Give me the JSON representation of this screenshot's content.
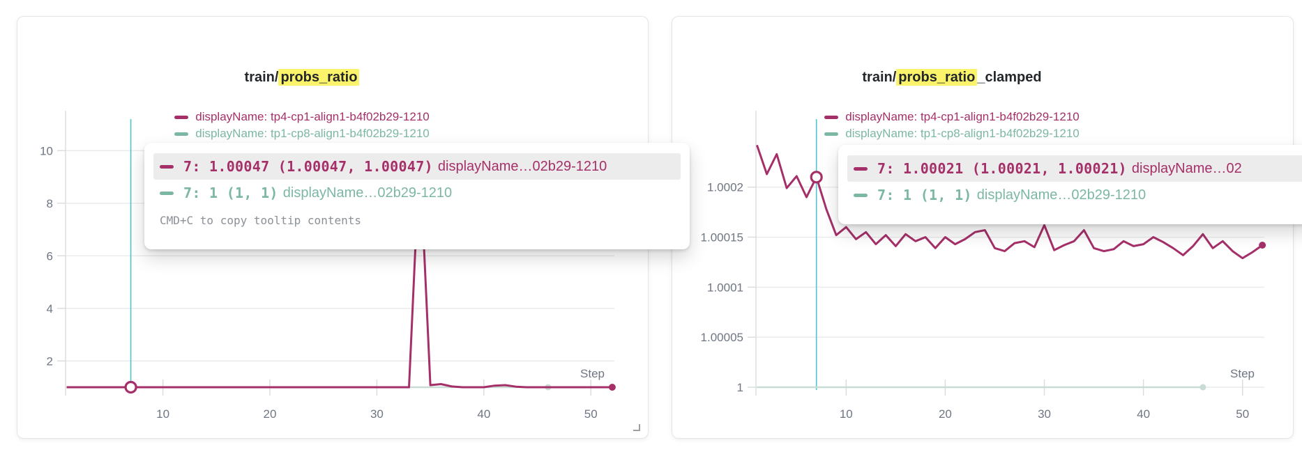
{
  "colors": {
    "series_magenta": "#a53069",
    "series_teal": "#7cb7a6",
    "series_teal_muted": "#c9dbd5",
    "crosshair": "#4fc4cf",
    "highlight_yellow": "#fbf36a",
    "axis_text": "#6f7683",
    "gridline": "#e9eaec",
    "tick_line": "#d9dbdf",
    "tooltip_row_bg": "#ececec"
  },
  "panels": [
    {
      "title_prefix": "train/",
      "title_highlight": "probs_ratio",
      "title_suffix": "",
      "legend": [
        {
          "label": "displayName: tp4-cp1-align1-b4f02b29-1210",
          "color": "#a53069"
        },
        {
          "label": "displayName: tp1-cp8-align1-b4f02b29-1210",
          "color": "#7cb7a6"
        }
      ],
      "tooltip": {
        "rows": [
          {
            "value_text": "7: 1.00047 (1.00047, 1.00047)",
            "name_text": "displayName…02b29-1210",
            "color": "#a53069",
            "highlighted": true
          },
          {
            "value_text": "7: 1 (1, 1)",
            "name_text": "displayName…02b29-1210",
            "color": "#7cb7a6",
            "highlighted": false
          }
        ],
        "footer": "CMD+C to copy tooltip contents"
      }
    },
    {
      "title_prefix": "train/",
      "title_highlight": "probs_ratio",
      "title_suffix": "_clamped",
      "legend": [
        {
          "label": "displayName: tp4-cp1-align1-b4f02b29-1210",
          "color": "#a53069"
        },
        {
          "label": "displayName: tp1-cp8-align1-b4f02b29-1210",
          "color": "#7cb7a6"
        }
      ],
      "tooltip": {
        "rows": [
          {
            "value_text": "7: 1.00021 (1.00021, 1.00021)",
            "name_text": "displayName…02",
            "color": "#a53069",
            "highlighted": true
          },
          {
            "value_text": "7: 1 (1, 1)",
            "name_text": "displayName…02b29-1210",
            "color": "#7cb7a6",
            "highlighted": false
          }
        ],
        "footer": ""
      }
    }
  ],
  "chart_data": [
    {
      "type": "line",
      "title": "train/probs_ratio",
      "xlabel": "Step",
      "xlim": [
        0.9,
        52.2
      ],
      "ylim": [
        1,
        11.2
      ],
      "x_ticks": [
        {
          "v": 10,
          "label": "10"
        },
        {
          "v": 20,
          "label": "20"
        },
        {
          "v": 30,
          "label": "30"
        },
        {
          "v": 40,
          "label": "40"
        },
        {
          "v": 50,
          "label": "50"
        }
      ],
      "y_ticks": [
        {
          "v": 2,
          "label": "2"
        },
        {
          "v": 4,
          "label": "4"
        },
        {
          "v": 6,
          "label": "6"
        },
        {
          "v": 8,
          "label": "8"
        },
        {
          "v": 10,
          "label": "10"
        }
      ],
      "hover": {
        "step": 7,
        "value": 1.00047
      },
      "series": [
        {
          "name": "tp1-cp8-align1-b4f02b29-1210",
          "color": "#7cb7a6",
          "render_color": "#c9dbd5",
          "x": [
            1,
            2,
            3,
            4,
            5,
            6,
            7,
            8,
            9,
            10,
            11,
            12,
            13,
            14,
            15,
            16,
            17,
            18,
            19,
            20,
            21,
            22,
            23,
            24,
            25,
            26,
            27,
            28,
            29,
            30,
            31,
            32,
            33,
            34,
            35,
            36,
            37,
            38,
            39,
            40,
            41,
            42,
            43,
            44,
            45,
            46
          ],
          "values": [
            1,
            1,
            1,
            1,
            1,
            1,
            1,
            1,
            1,
            1,
            1,
            1,
            1,
            1,
            1,
            1,
            1,
            1,
            1,
            1,
            1,
            1,
            1,
            1,
            1,
            1,
            1,
            1,
            1,
            1,
            1,
            1,
            1,
            1,
            1,
            1,
            1,
            1,
            1,
            1,
            1,
            1,
            1,
            1,
            1,
            1
          ]
        },
        {
          "name": "tp4-cp1-align1-b4f02b29-1210",
          "color": "#a53069",
          "x": [
            1,
            2,
            3,
            4,
            5,
            6,
            7,
            8,
            9,
            10,
            11,
            12,
            13,
            14,
            15,
            16,
            17,
            18,
            19,
            20,
            21,
            22,
            23,
            24,
            25,
            26,
            27,
            28,
            29,
            30,
            31,
            32,
            33,
            34,
            35,
            36,
            37,
            38,
            39,
            40,
            41,
            42,
            43,
            44,
            45,
            46,
            47,
            48,
            49,
            50,
            51,
            52
          ],
          "values": [
            1,
            1,
            1,
            1,
            1,
            1,
            1.00047,
            1,
            1,
            1,
            1,
            1,
            1,
            1,
            1,
            1,
            1,
            1,
            1,
            1,
            1,
            1,
            1,
            1,
            1,
            1,
            1,
            1,
            1,
            1,
            1,
            1,
            1,
            9.9,
            1.08,
            1.12,
            1.03,
            1,
            1,
            1,
            1.06,
            1.08,
            1.02,
            1,
            1,
            1,
            1,
            1,
            1,
            1,
            1,
            1
          ]
        }
      ]
    },
    {
      "type": "line",
      "title": "train/probs_ratio_clamped",
      "xlabel": "Step",
      "xlim": [
        0.9,
        52.2
      ],
      "ylim": [
        1,
        1.000268
      ],
      "x_ticks": [
        {
          "v": 10,
          "label": "10"
        },
        {
          "v": 20,
          "label": "20"
        },
        {
          "v": 30,
          "label": "30"
        },
        {
          "v": 40,
          "label": "40"
        },
        {
          "v": 50,
          "label": "50"
        }
      ],
      "y_ticks": [
        {
          "v": 1,
          "label": "1"
        },
        {
          "v": 1.00005,
          "label": "1.00005"
        },
        {
          "v": 1.0001,
          "label": "1.0001"
        },
        {
          "v": 1.00015,
          "label": "1.00015"
        },
        {
          "v": 1.0002,
          "label": "1.0002"
        }
      ],
      "hover": {
        "step": 7,
        "value": 1.00021
      },
      "series": [
        {
          "name": "tp1-cp8-align1-b4f02b29-1210",
          "color": "#7cb7a6",
          "render_color": "#c9dbd5",
          "x": [
            1,
            2,
            3,
            4,
            5,
            6,
            7,
            8,
            9,
            10,
            11,
            12,
            13,
            14,
            15,
            16,
            17,
            18,
            19,
            20,
            21,
            22,
            23,
            24,
            25,
            26,
            27,
            28,
            29,
            30,
            31,
            32,
            33,
            34,
            35,
            36,
            37,
            38,
            39,
            40,
            41,
            42,
            43,
            44,
            45,
            46
          ],
          "values": [
            1,
            1,
            1,
            1,
            1,
            1,
            1,
            1,
            1,
            1,
            1,
            1,
            1,
            1,
            1,
            1,
            1,
            1,
            1,
            1,
            1,
            1,
            1,
            1,
            1,
            1,
            1,
            1,
            1,
            1,
            1,
            1,
            1,
            1,
            1,
            1,
            1,
            1,
            1,
            1,
            1,
            1,
            1,
            1,
            1,
            1
          ]
        },
        {
          "name": "tp4-cp1-align1-b4f02b29-1210",
          "color": "#a53069",
          "x": [
            1,
            2,
            3,
            4,
            5,
            6,
            7,
            8,
            9,
            10,
            11,
            12,
            13,
            14,
            15,
            16,
            17,
            18,
            19,
            20,
            21,
            22,
            23,
            24,
            25,
            26,
            27,
            28,
            29,
            30,
            31,
            32,
            33,
            34,
            35,
            36,
            37,
            38,
            39,
            40,
            41,
            42,
            43,
            44,
            45,
            46,
            47,
            48,
            49,
            50,
            51,
            52
          ],
          "values": [
            1.000242,
            1.000213,
            1.000233,
            1.000199,
            1.000211,
            1.00019,
            1.00021,
            1.000178,
            1.000152,
            1.00016,
            1.000148,
            1.000155,
            1.000143,
            1.000152,
            1.000141,
            1.000153,
            1.000146,
            1.00015,
            1.000139,
            1.00015,
            1.000143,
            1.000148,
            1.000155,
            1.000157,
            1.000139,
            1.000136,
            1.000144,
            1.000146,
            1.00014,
            1.000162,
            1.000137,
            1.000142,
            1.000146,
            1.000157,
            1.000139,
            1.000136,
            1.000138,
            1.000146,
            1.000141,
            1.000143,
            1.00015,
            1.000145,
            1.000139,
            1.000132,
            1.000141,
            1.000153,
            1.000139,
            1.000146,
            1.000136,
            1.000129,
            1.000135,
            1.000142
          ]
        }
      ]
    }
  ]
}
